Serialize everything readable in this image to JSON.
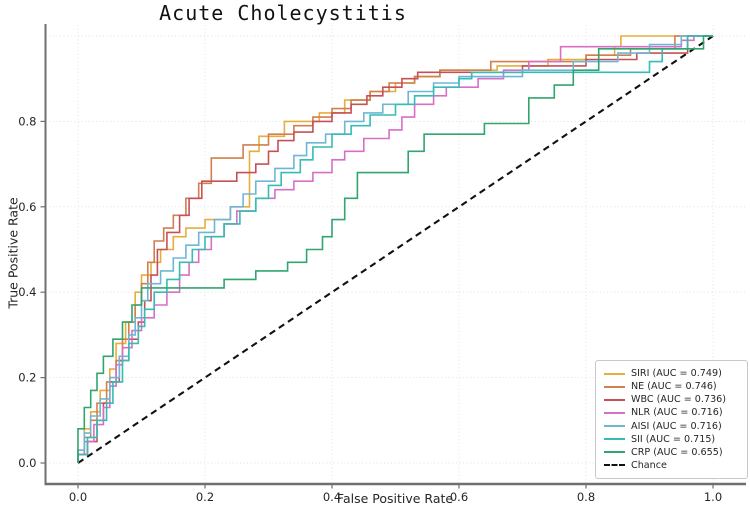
{
  "title": "Acute Cholecystitis",
  "chart_data": {
    "type": "line",
    "subtype": "roc_curve",
    "title": "Acute Cholecystitis",
    "xlabel": "False Positive Rate",
    "ylabel": "True Positive Rate",
    "xlim": [
      -0.05,
      1.05
    ],
    "ylim": [
      -0.05,
      1.05
    ],
    "grid": true,
    "grid_values": [
      0,
      0.2,
      0.4,
      0.6,
      0.8,
      1.0
    ],
    "xtick_values": [
      0,
      0.2,
      0.4,
      0.6,
      0.8,
      1.0
    ],
    "xtick_labels": [
      "0.0",
      "0.2",
      "0.4",
      "0.6",
      "0.8",
      "1.0"
    ],
    "ytick_values": [
      0,
      0.2,
      0.4,
      0.6,
      0.8
    ],
    "ytick_labels": [
      "0.0",
      "0.2",
      "0.4",
      "0.6",
      "0.8"
    ],
    "legend_position": "lower right",
    "series": [
      {
        "name": "SIRI",
        "auc": 0.749,
        "label": "SIRI (AUC = 0.749)",
        "color": "#E6AE3C",
        "points": [
          [
            0,
            0
          ],
          [
            0,
            0.03
          ],
          [
            0.01,
            0.08
          ],
          [
            0.02,
            0.12
          ],
          [
            0.035,
            0.17
          ],
          [
            0.05,
            0.22
          ],
          [
            0.06,
            0.28
          ],
          [
            0.075,
            0.33
          ],
          [
            0.09,
            0.4
          ],
          [
            0.1,
            0.44
          ],
          [
            0.115,
            0.47
          ],
          [
            0.13,
            0.5
          ],
          [
            0.15,
            0.53
          ],
          [
            0.17,
            0.55
          ],
          [
            0.2,
            0.57
          ],
          [
            0.24,
            0.6
          ],
          [
            0.27,
            0.73
          ],
          [
            0.285,
            0.765
          ],
          [
            0.325,
            0.8
          ],
          [
            0.38,
            0.82
          ],
          [
            0.42,
            0.85
          ],
          [
            0.46,
            0.87
          ],
          [
            0.5,
            0.89
          ],
          [
            0.53,
            0.905
          ],
          [
            0.57,
            0.92
          ],
          [
            0.66,
            0.93
          ],
          [
            0.74,
            0.945
          ],
          [
            0.8,
            0.955
          ],
          [
            0.845,
            0.975
          ],
          [
            0.855,
            1
          ],
          [
            1,
            1
          ]
        ]
      },
      {
        "name": "NE",
        "auc": 0.746,
        "label": "NE (AUC = 0.746)",
        "color": "#D07F4D",
        "points": [
          [
            0,
            0
          ],
          [
            0,
            0.02
          ],
          [
            0.01,
            0.06
          ],
          [
            0.02,
            0.1
          ],
          [
            0.03,
            0.14
          ],
          [
            0.045,
            0.19
          ],
          [
            0.06,
            0.24
          ],
          [
            0.07,
            0.29
          ],
          [
            0.08,
            0.33
          ],
          [
            0.09,
            0.37
          ],
          [
            0.1,
            0.42
          ],
          [
            0.11,
            0.47
          ],
          [
            0.12,
            0.52
          ],
          [
            0.135,
            0.55
          ],
          [
            0.15,
            0.58
          ],
          [
            0.17,
            0.62
          ],
          [
            0.19,
            0.655
          ],
          [
            0.21,
            0.714
          ],
          [
            0.26,
            0.745
          ],
          [
            0.3,
            0.77
          ],
          [
            0.34,
            0.79
          ],
          [
            0.37,
            0.81
          ],
          [
            0.4,
            0.83
          ],
          [
            0.43,
            0.85
          ],
          [
            0.46,
            0.87
          ],
          [
            0.49,
            0.89
          ],
          [
            0.53,
            0.905
          ],
          [
            0.57,
            0.92
          ],
          [
            0.65,
            0.94
          ],
          [
            0.8,
            0.955
          ],
          [
            0.87,
            0.97
          ],
          [
            0.94,
            1
          ],
          [
            1,
            1
          ]
        ]
      },
      {
        "name": "WBC",
        "auc": 0.736,
        "label": "WBC (AUC = 0.736)",
        "color": "#C65058",
        "points": [
          [
            0,
            0
          ],
          [
            0,
            0.02
          ],
          [
            0.015,
            0.05
          ],
          [
            0.03,
            0.1
          ],
          [
            0.04,
            0.14
          ],
          [
            0.05,
            0.19
          ],
          [
            0.065,
            0.24
          ],
          [
            0.08,
            0.29
          ],
          [
            0.095,
            0.33
          ],
          [
            0.105,
            0.38
          ],
          [
            0.115,
            0.44
          ],
          [
            0.125,
            0.5
          ],
          [
            0.14,
            0.54
          ],
          [
            0.16,
            0.58
          ],
          [
            0.175,
            0.62
          ],
          [
            0.195,
            0.66
          ],
          [
            0.25,
            0.68
          ],
          [
            0.28,
            0.7
          ],
          [
            0.3,
            0.73
          ],
          [
            0.315,
            0.755
          ],
          [
            0.34,
            0.775
          ],
          [
            0.37,
            0.8
          ],
          [
            0.4,
            0.82
          ],
          [
            0.43,
            0.84
          ],
          [
            0.455,
            0.86
          ],
          [
            0.48,
            0.88
          ],
          [
            0.51,
            0.9
          ],
          [
            0.535,
            0.915
          ],
          [
            0.7,
            0.93
          ],
          [
            0.8,
            0.945
          ],
          [
            0.88,
            0.96
          ],
          [
            0.96,
            1
          ],
          [
            1,
            1
          ]
        ]
      },
      {
        "name": "NLR",
        "auc": 0.716,
        "label": "NLR (AUC = 0.716)",
        "color": "#D86FC6",
        "points": [
          [
            0,
            0
          ],
          [
            0,
            0.02
          ],
          [
            0.01,
            0.05
          ],
          [
            0.025,
            0.09
          ],
          [
            0.04,
            0.13
          ],
          [
            0.05,
            0.18
          ],
          [
            0.06,
            0.23
          ],
          [
            0.07,
            0.27
          ],
          [
            0.085,
            0.31
          ],
          [
            0.1,
            0.34
          ],
          [
            0.12,
            0.37
          ],
          [
            0.14,
            0.4
          ],
          [
            0.16,
            0.44
          ],
          [
            0.175,
            0.47
          ],
          [
            0.19,
            0.5
          ],
          [
            0.21,
            0.53
          ],
          [
            0.23,
            0.56
          ],
          [
            0.25,
            0.59
          ],
          [
            0.28,
            0.62
          ],
          [
            0.31,
            0.64
          ],
          [
            0.34,
            0.66
          ],
          [
            0.37,
            0.68
          ],
          [
            0.4,
            0.71
          ],
          [
            0.42,
            0.73
          ],
          [
            0.45,
            0.76
          ],
          [
            0.49,
            0.78
          ],
          [
            0.51,
            0.81
          ],
          [
            0.53,
            0.84
          ],
          [
            0.56,
            0.86
          ],
          [
            0.58,
            0.88
          ],
          [
            0.63,
            0.9
          ],
          [
            0.67,
            0.92
          ],
          [
            0.71,
            0.94
          ],
          [
            0.76,
            0.975
          ],
          [
            0.95,
            0.99
          ],
          [
            0.97,
            1
          ],
          [
            1,
            1
          ]
        ]
      },
      {
        "name": "AISI",
        "auc": 0.716,
        "label": "AISI (AUC = 0.716)",
        "color": "#6FB6D5",
        "points": [
          [
            0,
            0
          ],
          [
            0,
            0.03
          ],
          [
            0.01,
            0.07
          ],
          [
            0.02,
            0.11
          ],
          [
            0.035,
            0.15
          ],
          [
            0.05,
            0.2
          ],
          [
            0.065,
            0.25
          ],
          [
            0.08,
            0.3
          ],
          [
            0.09,
            0.34
          ],
          [
            0.1,
            0.38
          ],
          [
            0.11,
            0.42
          ],
          [
            0.13,
            0.45
          ],
          [
            0.15,
            0.48
          ],
          [
            0.17,
            0.51
          ],
          [
            0.19,
            0.54
          ],
          [
            0.215,
            0.57
          ],
          [
            0.24,
            0.6
          ],
          [
            0.26,
            0.63
          ],
          [
            0.28,
            0.66
          ],
          [
            0.31,
            0.69
          ],
          [
            0.34,
            0.72
          ],
          [
            0.36,
            0.75
          ],
          [
            0.39,
            0.77
          ],
          [
            0.42,
            0.8
          ],
          [
            0.45,
            0.82
          ],
          [
            0.48,
            0.84
          ],
          [
            0.52,
            0.87
          ],
          [
            0.56,
            0.89
          ],
          [
            0.6,
            0.905
          ],
          [
            0.7,
            0.92
          ],
          [
            0.78,
            0.94
          ],
          [
            0.85,
            0.96
          ],
          [
            0.9,
            0.98
          ],
          [
            0.95,
            1
          ],
          [
            1,
            1
          ]
        ]
      },
      {
        "name": "SII",
        "auc": 0.715,
        "label": "SII (AUC = 0.715)",
        "color": "#35BCB4",
        "points": [
          [
            0,
            0
          ],
          [
            0,
            0.02
          ],
          [
            0.015,
            0.06
          ],
          [
            0.03,
            0.1
          ],
          [
            0.045,
            0.14
          ],
          [
            0.055,
            0.19
          ],
          [
            0.07,
            0.24
          ],
          [
            0.08,
            0.28
          ],
          [
            0.095,
            0.32
          ],
          [
            0.105,
            0.36
          ],
          [
            0.12,
            0.4
          ],
          [
            0.14,
            0.43
          ],
          [
            0.16,
            0.47
          ],
          [
            0.18,
            0.5
          ],
          [
            0.2,
            0.53
          ],
          [
            0.23,
            0.56
          ],
          [
            0.255,
            0.59
          ],
          [
            0.28,
            0.62
          ],
          [
            0.3,
            0.65
          ],
          [
            0.32,
            0.68
          ],
          [
            0.35,
            0.71
          ],
          [
            0.37,
            0.74
          ],
          [
            0.4,
            0.77
          ],
          [
            0.43,
            0.79
          ],
          [
            0.46,
            0.815
          ],
          [
            0.5,
            0.84
          ],
          [
            0.53,
            0.86
          ],
          [
            0.56,
            0.88
          ],
          [
            0.6,
            0.9
          ],
          [
            0.62,
            0.915
          ],
          [
            0.9,
            0.94
          ],
          [
            0.92,
            0.97
          ],
          [
            0.96,
            1
          ],
          [
            1,
            1
          ]
        ]
      },
      {
        "name": "CRP",
        "auc": 0.655,
        "label": "CRP (AUC = 0.655)",
        "color": "#31A56E",
        "points": [
          [
            0,
            0
          ],
          [
            0,
            0.08
          ],
          [
            0.01,
            0.13
          ],
          [
            0.02,
            0.17
          ],
          [
            0.03,
            0.21
          ],
          [
            0.04,
            0.25
          ],
          [
            0.055,
            0.29
          ],
          [
            0.07,
            0.33
          ],
          [
            0.085,
            0.37
          ],
          [
            0.1,
            0.41
          ],
          [
            0.23,
            0.43
          ],
          [
            0.28,
            0.45
          ],
          [
            0.33,
            0.47
          ],
          [
            0.36,
            0.5
          ],
          [
            0.385,
            0.53
          ],
          [
            0.4,
            0.57
          ],
          [
            0.42,
            0.62
          ],
          [
            0.44,
            0.68
          ],
          [
            0.52,
            0.73
          ],
          [
            0.545,
            0.77
          ],
          [
            0.64,
            0.795
          ],
          [
            0.71,
            0.855
          ],
          [
            0.75,
            0.885
          ],
          [
            0.78,
            0.92
          ],
          [
            0.82,
            0.97
          ],
          [
            0.985,
            1
          ],
          [
            1,
            1
          ]
        ]
      }
    ],
    "chance": {
      "label": "Chance",
      "color": "#111111",
      "style": "dashed",
      "points": [
        [
          0,
          0
        ],
        [
          1,
          1
        ]
      ]
    }
  },
  "colors": {
    "axis": "#6f6f6f",
    "grid": "#dddddd",
    "tick_text": "#262626",
    "background": "#ffffff"
  }
}
